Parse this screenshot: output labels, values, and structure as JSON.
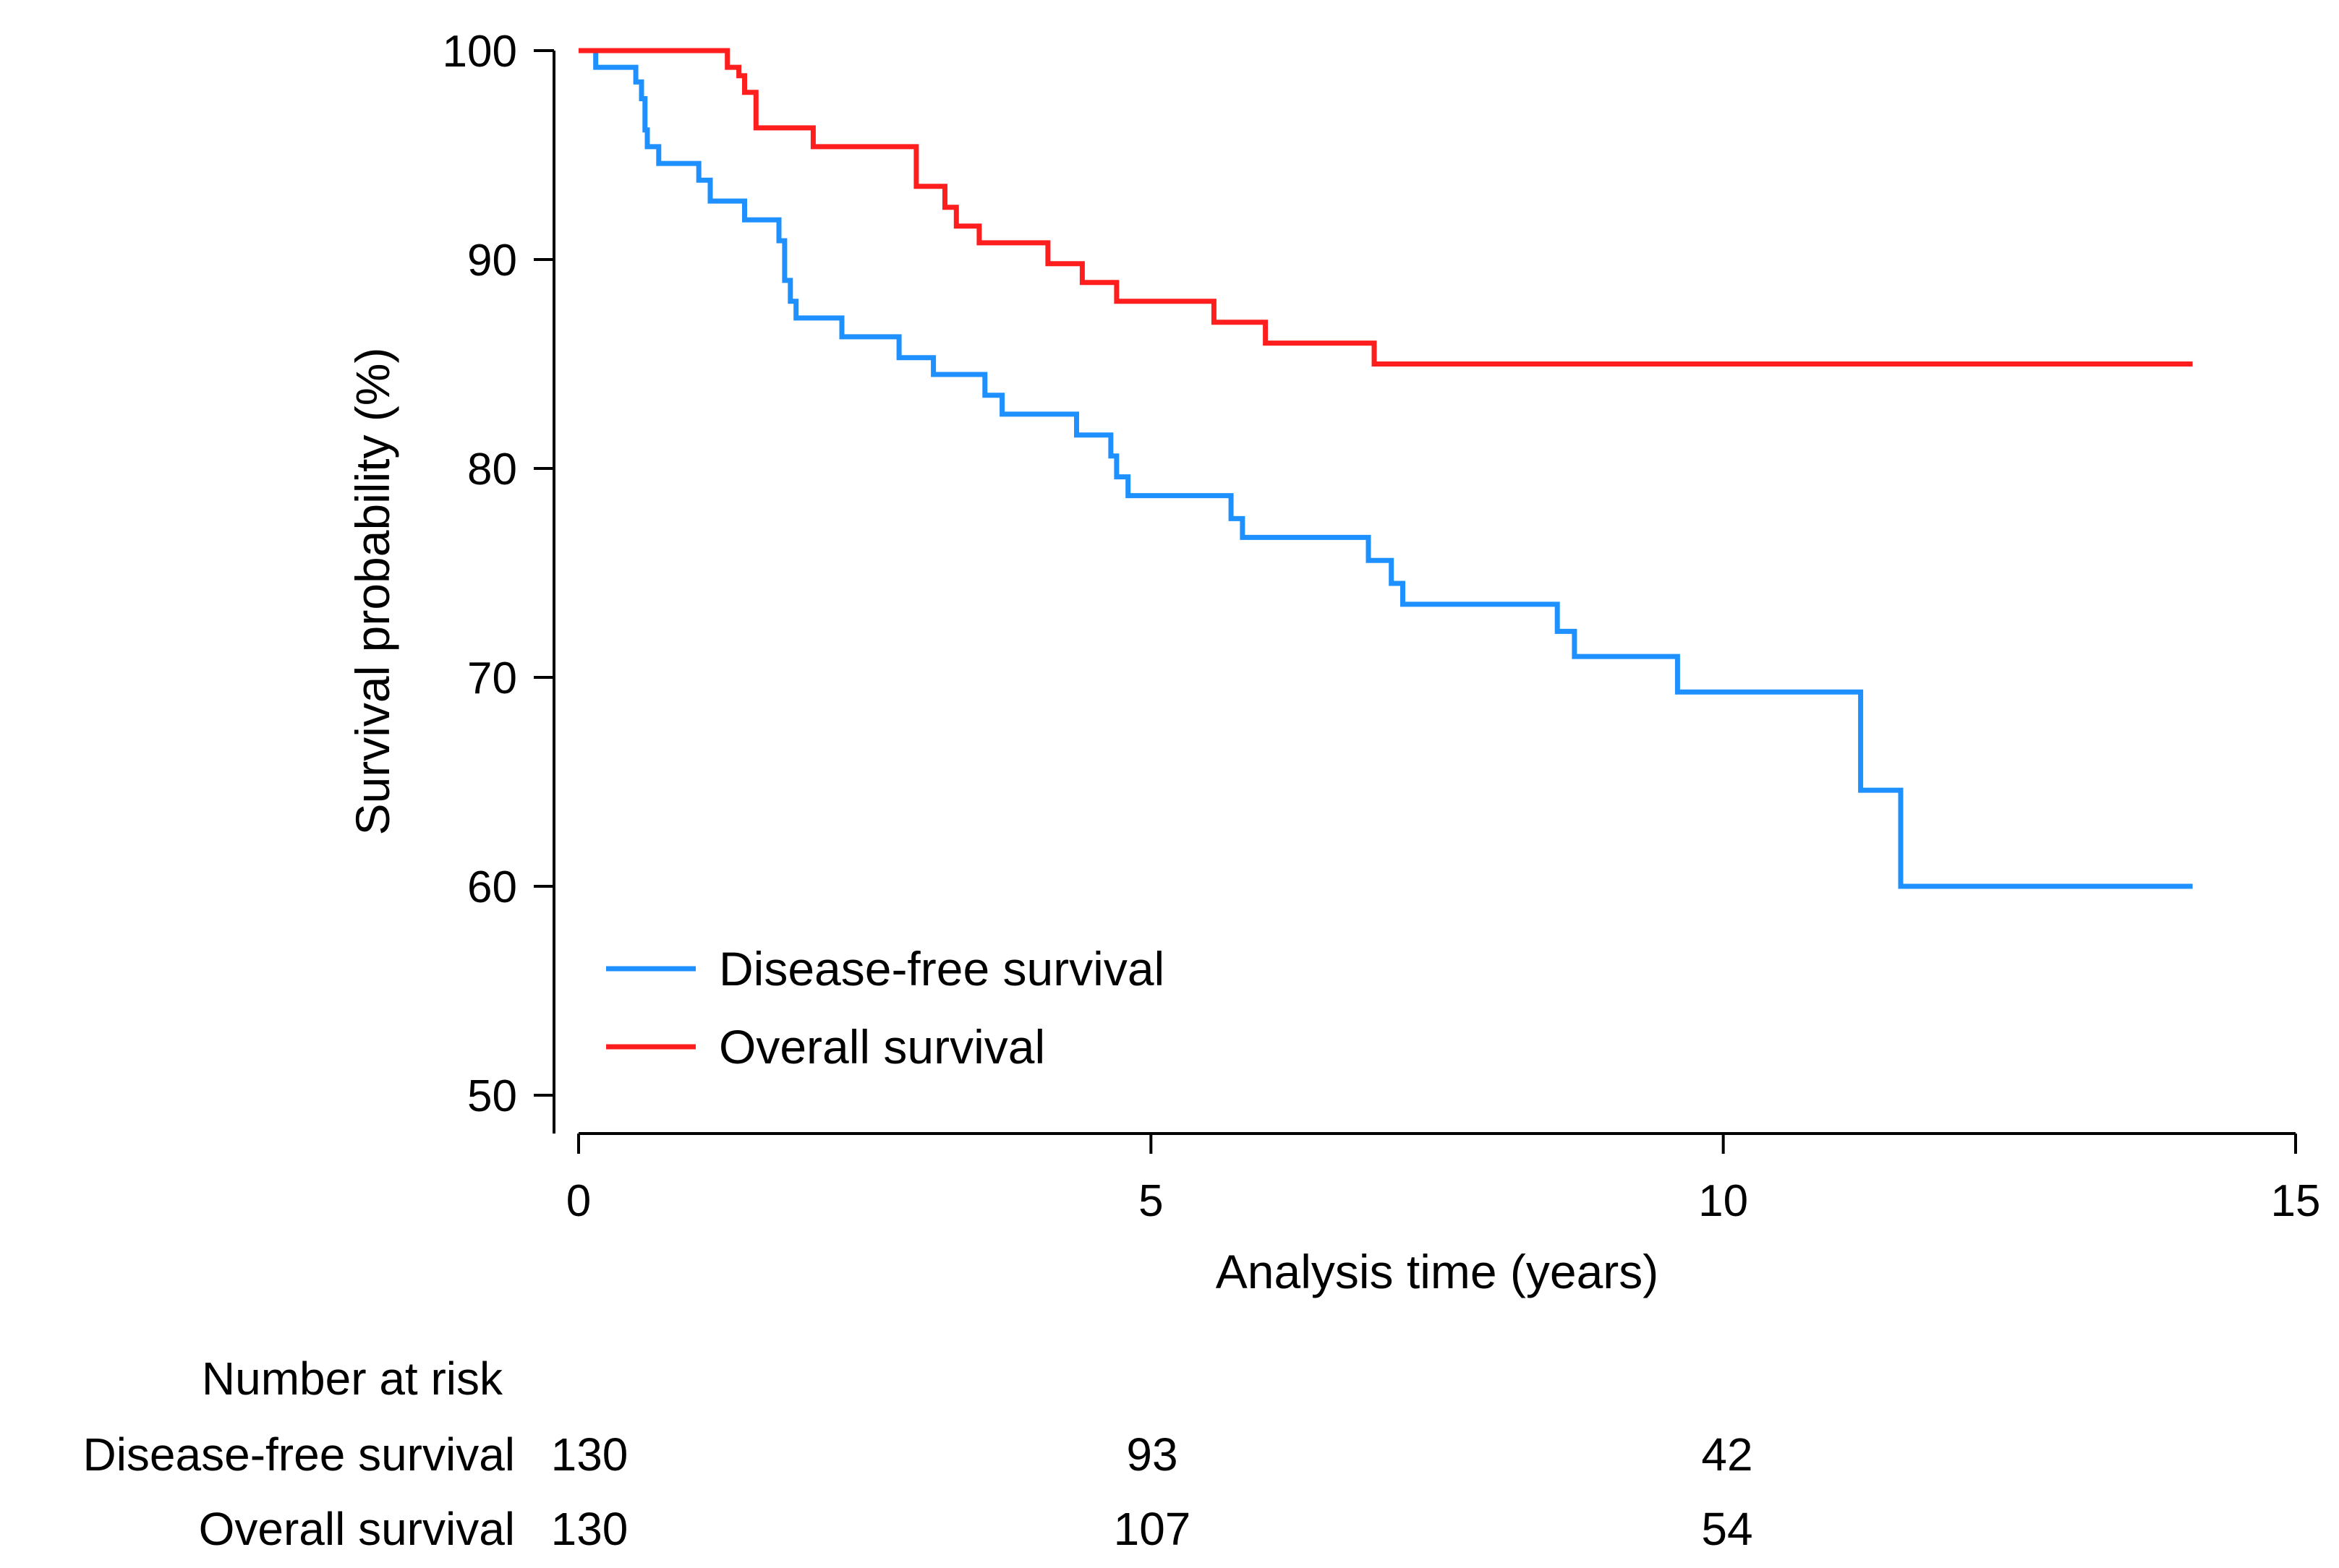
{
  "chart_data": {
    "type": "line",
    "subtype": "kaplan-meier step",
    "xlabel": "Analysis time (years)",
    "ylabel": "Survival probability (%)",
    "xlim": [
      0,
      15
    ],
    "ylim": [
      50,
      100
    ],
    "xticks": [
      0,
      5,
      10,
      15
    ],
    "yticks": [
      50,
      60,
      70,
      80,
      90,
      100
    ],
    "grid": false,
    "legend_position": "bottom-left",
    "series": [
      {
        "name": "Disease-free survival",
        "color": "#1e90ff",
        "x": [
          0,
          0.15,
          0.5,
          0.55,
          0.58,
          0.6,
          0.7,
          1.05,
          1.15,
          1.45,
          1.75,
          1.8,
          1.85,
          1.9,
          2.3,
          2.8,
          3.1,
          3.55,
          3.7,
          4.35,
          4.65,
          4.7,
          4.8,
          5.7,
          5.8,
          6.9,
          7.1,
          7.2,
          8.55,
          8.7,
          9.6,
          11.2,
          11.55,
          14.1
        ],
        "values": [
          100,
          99.2,
          98.5,
          97.7,
          96.2,
          95.4,
          94.6,
          93.8,
          92.8,
          91.9,
          90.9,
          89,
          88,
          87.2,
          86.3,
          85.3,
          84.5,
          83.5,
          82.6,
          81.6,
          80.6,
          79.6,
          78.7,
          77.6,
          76.7,
          75.6,
          74.5,
          73.5,
          72.2,
          71,
          69.3,
          64.6,
          60,
          60
        ]
      },
      {
        "name": "Overall survival",
        "color": "#ff1e1e",
        "x": [
          0,
          1.3,
          1.4,
          1.45,
          1.55,
          2.05,
          2.95,
          3.2,
          3.3,
          3.5,
          4.1,
          4.4,
          4.7,
          5.55,
          6.0,
          6.95,
          14.1
        ],
        "values": [
          100,
          99.2,
          98.8,
          98,
          96.3,
          95.4,
          93.5,
          92.5,
          91.6,
          90.8,
          89.8,
          88.9,
          88,
          87,
          86,
          85,
          85
        ]
      }
    ],
    "risk_table": {
      "title": "Number at risk",
      "times": [
        0,
        5,
        10
      ],
      "rows": [
        {
          "label": "Disease-free survival",
          "counts": [
            "130",
            "93",
            "42"
          ]
        },
        {
          "label": "Overall survival",
          "counts": [
            "130",
            "107",
            "54"
          ]
        }
      ]
    }
  }
}
